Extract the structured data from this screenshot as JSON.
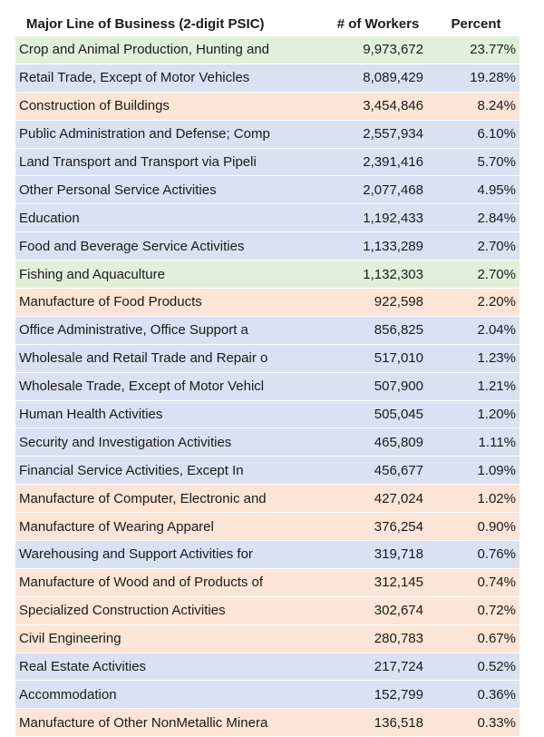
{
  "chart_data": {
    "type": "table",
    "columns": [
      "Major Line of Business (2-digit PSIC)",
      "# of Workers",
      "Percent"
    ],
    "colors": {
      "g": "#e2efda",
      "b": "#d9e1f2",
      "o": "#fce4d6"
    },
    "rows": [
      {
        "name": "Crop and Animal Production, Hunting and",
        "workers": "9,973,672",
        "percent": "23.77%",
        "color": "g"
      },
      {
        "name": "Retail Trade, Except of Motor Vehicles",
        "workers": "8,089,429",
        "percent": "19.28%",
        "color": "b"
      },
      {
        "name": "Construction of Buildings",
        "workers": "3,454,846",
        "percent": "8.24%",
        "color": "o"
      },
      {
        "name": "Public Administration and Defense; Comp",
        "workers": "2,557,934",
        "percent": "6.10%",
        "color": "b"
      },
      {
        "name": "Land Transport and Transport via Pipeli",
        "workers": "2,391,416",
        "percent": "5.70%",
        "color": "b"
      },
      {
        "name": "Other Personal Service Activities",
        "workers": "2,077,468",
        "percent": "4.95%",
        "color": "b"
      },
      {
        "name": "Education",
        "workers": "1,192,433",
        "percent": "2.84%",
        "color": "b"
      },
      {
        "name": "Food and Beverage Service Activities",
        "workers": "1,133,289",
        "percent": "2.70%",
        "color": "b"
      },
      {
        "name": "Fishing and Aquaculture",
        "workers": "1,132,303",
        "percent": "2.70%",
        "color": "g"
      },
      {
        "name": "Manufacture of Food Products",
        "workers": "922,598",
        "percent": "2.20%",
        "color": "o"
      },
      {
        "name": "Office Administrative, Office Support a",
        "workers": "856,825",
        "percent": "2.04%",
        "color": "b"
      },
      {
        "name": "Wholesale and Retail Trade and Repair o",
        "workers": "517,010",
        "percent": "1.23%",
        "color": "b"
      },
      {
        "name": "Wholesale Trade, Except of Motor Vehicl",
        "workers": "507,900",
        "percent": "1.21%",
        "color": "b"
      },
      {
        "name": "Human Health Activities",
        "workers": "505,045",
        "percent": "1.20%",
        "color": "b"
      },
      {
        "name": "Security and Investigation Activities",
        "workers": "465,809",
        "percent": "1.11%",
        "color": "b"
      },
      {
        "name": "Financial Service Activities, Except In",
        "workers": "456,677",
        "percent": "1.09%",
        "color": "b"
      },
      {
        "name": "Manufacture of Computer, Electronic and",
        "workers": "427,024",
        "percent": "1.02%",
        "color": "o"
      },
      {
        "name": "Manufacture of Wearing Apparel",
        "workers": "376,254",
        "percent": "0.90%",
        "color": "o"
      },
      {
        "name": "Warehousing and Support Activities for",
        "workers": "319,718",
        "percent": "0.76%",
        "color": "b"
      },
      {
        "name": "Manufacture of Wood and of Products of",
        "workers": "312,145",
        "percent": "0.74%",
        "color": "o"
      },
      {
        "name": "Specialized Construction Activities",
        "workers": "302,674",
        "percent": "0.72%",
        "color": "o"
      },
      {
        "name": "Civil Engineering",
        "workers": "280,783",
        "percent": "0.67%",
        "color": "o"
      },
      {
        "name": "Real Estate Activities",
        "workers": "217,724",
        "percent": "0.52%",
        "color": "b"
      },
      {
        "name": "Accommodation",
        "workers": "152,799",
        "percent": "0.36%",
        "color": "b"
      },
      {
        "name": "Manufacture of Other NonMetallic Minera",
        "workers": "136,518",
        "percent": "0.33%",
        "color": "o"
      }
    ]
  }
}
